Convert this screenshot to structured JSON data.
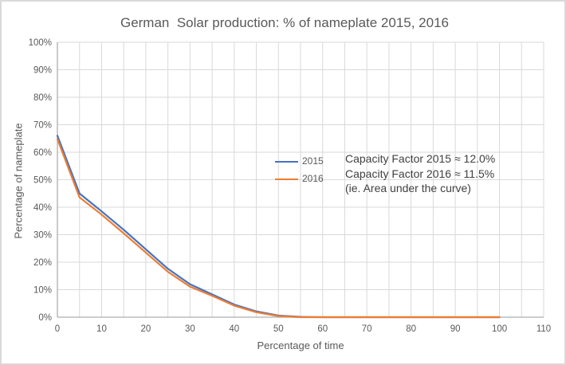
{
  "window": {
    "background": "#ffffff",
    "border_color": "#d9d9d9"
  },
  "chart": {
    "title": "German  Solar production: % of nameplate 2015, 2016",
    "x_axis_title": "Percentage of time",
    "y_axis_title": "Percentage of nameplate",
    "legend": [
      {
        "label": "2015"
      },
      {
        "label": "2016"
      }
    ],
    "annotation": {
      "line1": "Capacity Factor 2015 ≈ 12.0%",
      "line2": "Capacity Factor 2016 ≈ 11.5%",
      "line3": "(ie. Area under the curve)"
    }
  },
  "chart_data": {
    "type": "line",
    "title": "German  Solar production: % of nameplate 2015, 2016",
    "xlabel": "Percentage of time",
    "ylabel": "Percentage of nameplate",
    "xlim": [
      0,
      110
    ],
    "ylim": [
      0,
      100
    ],
    "x_ticks": [
      0,
      10,
      20,
      30,
      40,
      50,
      60,
      70,
      80,
      90,
      100,
      110
    ],
    "y_ticks": [
      "0%",
      "10%",
      "20%",
      "30%",
      "40%",
      "50%",
      "60%",
      "70%",
      "80%",
      "90%",
      "100%"
    ],
    "grid": {
      "x_every": 5,
      "y_every": 10,
      "color": "#d9d9d9"
    },
    "axis_color": "#adadad",
    "tick_label_color": "#595959",
    "legend_position": "middle-right",
    "x": [
      0,
      5,
      10,
      15,
      20,
      25,
      30,
      35,
      40,
      45,
      50,
      55,
      60,
      65,
      70,
      75,
      80,
      85,
      90,
      95,
      100
    ],
    "series": [
      {
        "name": "2015",
        "color": "#4472c4",
        "values": [
          66,
          45,
          38.5,
          31.8,
          24.7,
          17.6,
          12,
          8.3,
          4.6,
          2.1,
          0.6,
          0.1,
          0,
          0,
          0,
          0,
          0,
          0,
          0,
          0,
          0
        ]
      },
      {
        "name": "2016",
        "color": "#ed7d31",
        "values": [
          64.8,
          43.6,
          37.3,
          30.5,
          23.5,
          16.5,
          11.1,
          7.8,
          4.2,
          1.8,
          0.4,
          0,
          0,
          0,
          0,
          0,
          0,
          0,
          0,
          0,
          0
        ]
      }
    ],
    "annotations": [
      "Capacity Factor 2015 ≈ 12.0%",
      "Capacity Factor 2016 ≈ 11.5%",
      "(ie. Area under the curve)"
    ]
  }
}
